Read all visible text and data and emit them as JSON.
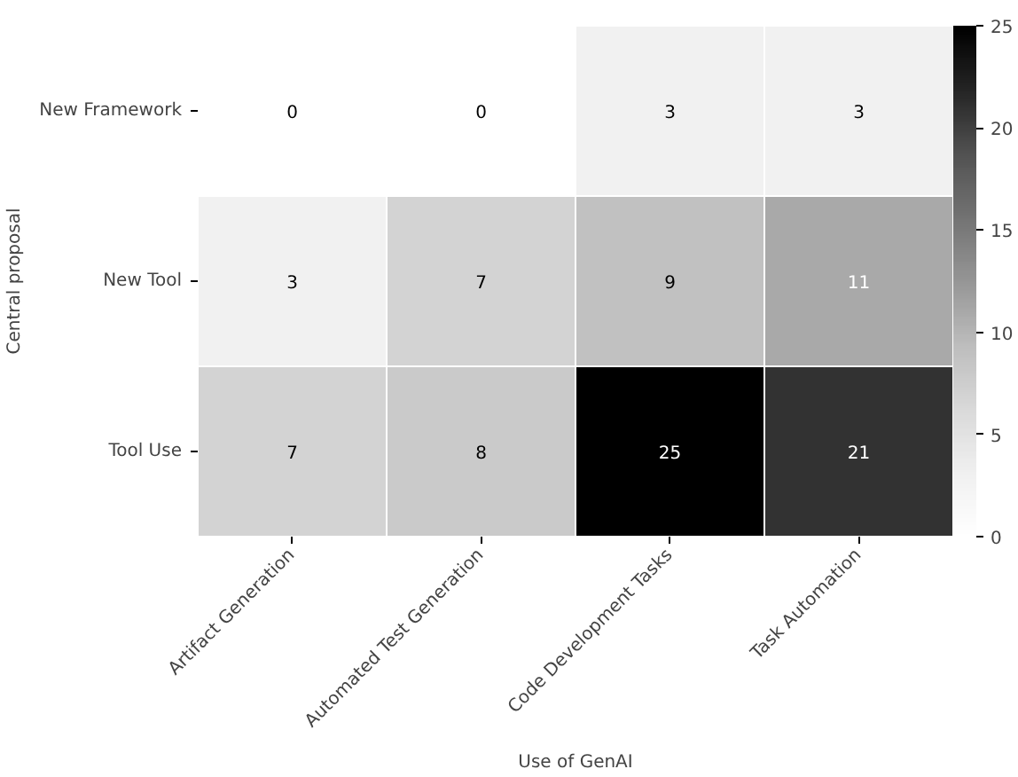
{
  "chart_data": {
    "type": "heatmap",
    "xlabel": "Use of GenAI",
    "ylabel": "Central proposal",
    "categories": [
      "Artifact Generation",
      "Automated Test Generation",
      "Code Development Tasks",
      "Task Automation"
    ],
    "y_categories": [
      "New Framework",
      "New Tool",
      "Tool Use"
    ],
    "cells": [
      [
        0,
        0,
        3,
        3
      ],
      [
        3,
        7,
        9,
        11
      ],
      [
        7,
        8,
        25,
        21
      ]
    ],
    "data_labels": true,
    "clim": [
      0,
      25
    ],
    "cticks": [
      0,
      5,
      10,
      15,
      20,
      25
    ]
  }
}
